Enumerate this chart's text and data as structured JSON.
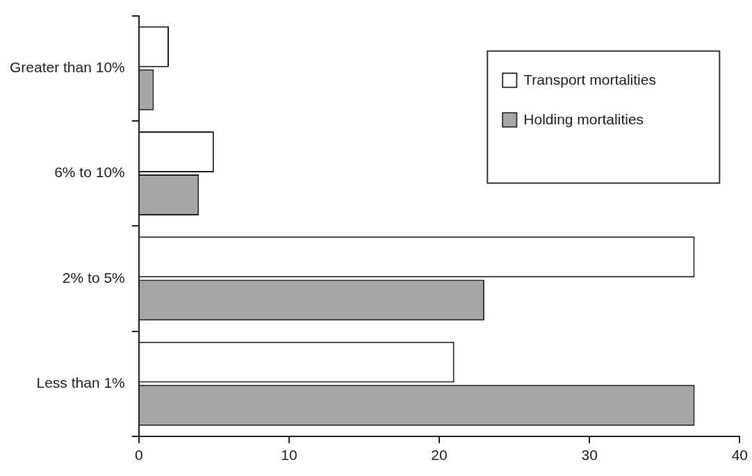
{
  "chart_data": {
    "type": "bar",
    "orientation": "horizontal",
    "categories": [
      "Greater than 10%",
      "6% to 10%",
      "2% to 5%",
      "Less than 1%"
    ],
    "series": [
      {
        "name": "Transport mortalities",
        "color": "#ffffff",
        "values": [
          2,
          5,
          37,
          21
        ]
      },
      {
        "name": "Holding mortalities",
        "color": "#a6a6a6",
        "values": [
          1,
          4,
          23,
          37
        ]
      }
    ],
    "xlim": [
      0,
      40
    ],
    "xticks": [
      0,
      10,
      20,
      30,
      40
    ],
    "grid": false,
    "legend": "top right"
  }
}
